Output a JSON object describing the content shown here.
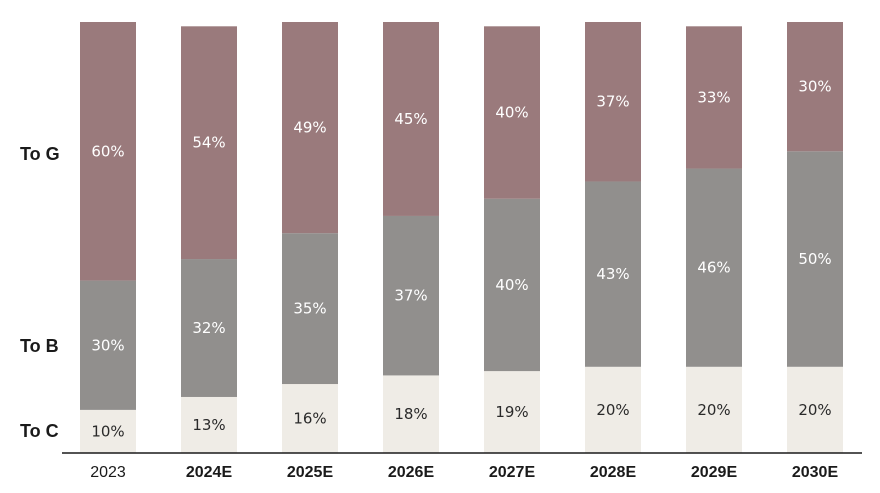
{
  "chart_data": {
    "type": "bar",
    "stacked": true,
    "normalized_percent": true,
    "categories": [
      "2023",
      "2024E",
      "2025E",
      "2026E",
      "2027E",
      "2028E",
      "2029E",
      "2030E"
    ],
    "series": [
      {
        "name": "To C",
        "values": [
          10,
          13,
          16,
          18,
          19,
          20,
          20,
          20
        ],
        "color": "#efece6",
        "label_color": "#2a2a2a"
      },
      {
        "name": "To B",
        "values": [
          30,
          32,
          35,
          37,
          40,
          43,
          46,
          50
        ],
        "color": "#918f8d",
        "label_color": "#ffffff"
      },
      {
        "name": "To G",
        "values": [
          60,
          54,
          49,
          45,
          40,
          37,
          33,
          30
        ],
        "color": "#9a7a7c",
        "label_color": "#ffffff"
      }
    ],
    "data_labels": [
      [
        "10%",
        "13%",
        "16%",
        "18%",
        "19%",
        "20%",
        "20%",
        "20%"
      ],
      [
        "30%",
        "32%",
        "35%",
        "37%",
        "40%",
        "43%",
        "46%",
        "50%"
      ],
      [
        "60%",
        "54%",
        "49%",
        "45%",
        "40%",
        "37%",
        "33%",
        "30%"
      ]
    ],
    "row_labels": [
      "To G",
      "To B",
      "To C"
    ],
    "ylim": [
      0,
      100
    ],
    "title": "",
    "xlabel": "",
    "ylabel": "",
    "grid": false,
    "legend": "row labels at left"
  }
}
